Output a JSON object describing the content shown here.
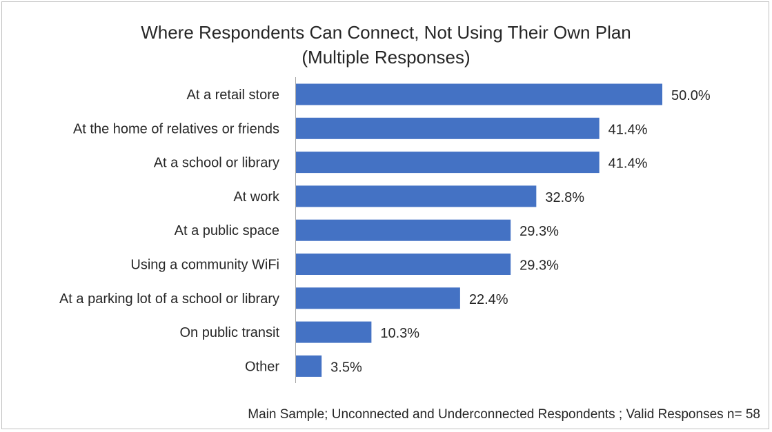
{
  "chart_data": {
    "type": "bar",
    "orientation": "horizontal",
    "title": "Where Respondents Can Connect, Not Using Their Own Plan",
    "subtitle": "(Multiple Responses)",
    "categories": [
      "At a retail store",
      "At the home of relatives or friends",
      "At a school or library",
      "At work",
      "At a public space",
      "Using a community WiFi",
      "At a parking lot of a school or library",
      "On public transit",
      "Other"
    ],
    "values": [
      50.0,
      41.4,
      41.4,
      32.8,
      29.3,
      29.3,
      22.4,
      10.3,
      3.5
    ],
    "value_labels": [
      "50.0%",
      "41.4%",
      "41.4%",
      "32.8%",
      "29.3%",
      "29.3%",
      "22.4%",
      "10.3%",
      "3.5%"
    ],
    "xlim": [
      0,
      50
    ],
    "grid": false,
    "bar_color": "#4472C4",
    "footnote": "Main Sample; Unconnected and Underconnected Respondents ; Valid Responses n= 58"
  }
}
